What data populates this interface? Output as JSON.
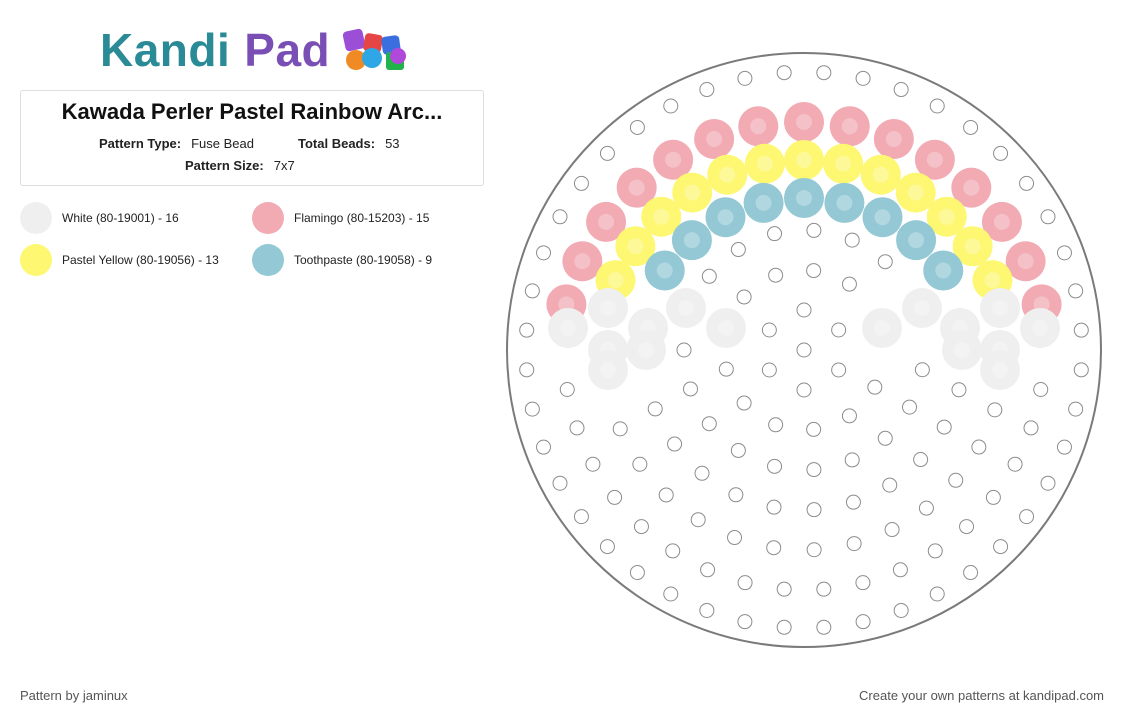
{
  "brand": {
    "logo_part1": "Kandi",
    "logo_part2": "Pad"
  },
  "pattern": {
    "title": "Kawada Perler Pastel Rainbow Arc...",
    "type_label": "Pattern Type:",
    "type_value": "Fuse Bead",
    "total_label": "Total Beads:",
    "total_value": "53",
    "size_label": "Pattern Size:",
    "size_value": "7x7"
  },
  "legend": [
    {
      "label": "White (80-19001) - 16",
      "color": "#efefef"
    },
    {
      "label": "Flamingo (80-15203) - 15",
      "color": "#f2aab3"
    },
    {
      "label": "Pastel Yellow (80-19056) - 13",
      "color": "#fdf772"
    },
    {
      "label": "Toothpaste (80-19058) - 9",
      "color": "#93c8d4"
    }
  ],
  "footer": {
    "author": "Pattern by jaminux",
    "cta": "Create your own patterns at kandipad.com"
  }
}
